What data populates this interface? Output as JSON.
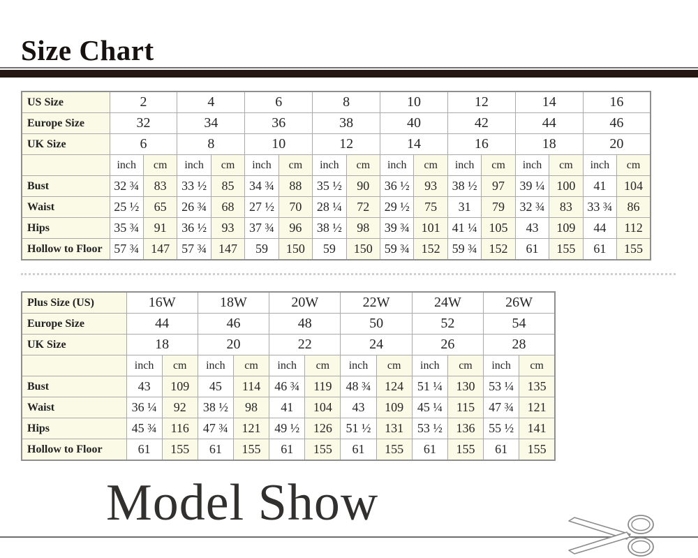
{
  "titles": {
    "size_chart": "Size Chart",
    "model_show": "Model Show"
  },
  "colors": {
    "cream_cell": "#FAFAE6",
    "table_border": "#A9A9A9",
    "title_bar": "#241712"
  },
  "icons": {
    "scissors": "✂"
  },
  "tables": {
    "standard": {
      "size_rows": [
        {
          "label": "US Size",
          "values": [
            "2",
            "4",
            "6",
            "8",
            "10",
            "12",
            "14",
            "16"
          ]
        },
        {
          "label": "Europe Size",
          "values": [
            "32",
            "34",
            "36",
            "38",
            "40",
            "42",
            "44",
            "46"
          ]
        },
        {
          "label": "UK Size",
          "values": [
            "6",
            "8",
            "10",
            "12",
            "14",
            "16",
            "18",
            "20"
          ]
        }
      ],
      "unit_corner": "",
      "unit_row": [
        "inch",
        "cm",
        "inch",
        "cm",
        "inch",
        "cm",
        "inch",
        "cm",
        "inch",
        "cm",
        "inch",
        "cm",
        "inch",
        "cm",
        "inch",
        "cm"
      ],
      "measure_rows": [
        {
          "label": "Bust",
          "values": [
            "32 ¾",
            "83",
            "33 ½",
            "85",
            "34 ¾",
            "88",
            "35 ½",
            "90",
            "36 ½",
            "93",
            "38 ½",
            "97",
            "39 ¼",
            "100",
            "41",
            "104"
          ]
        },
        {
          "label": "Waist",
          "values": [
            "25 ½",
            "65",
            "26 ¾",
            "68",
            "27 ½",
            "70",
            "28 ¼",
            "72",
            "29 ½",
            "75",
            "31",
            "79",
            "32 ¾",
            "83",
            "33 ¾",
            "86"
          ]
        },
        {
          "label": "Hips",
          "values": [
            "35 ¾",
            "91",
            "36 ½",
            "93",
            "37 ¾",
            "96",
            "38 ½",
            "98",
            "39 ¾",
            "101",
            "41 ¼",
            "105",
            "43",
            "109",
            "44",
            "112"
          ]
        },
        {
          "label": "Hollow to Floor",
          "values": [
            "57 ¾",
            "147",
            "57 ¾",
            "147",
            "59",
            "150",
            "59",
            "150",
            "59 ¾",
            "152",
            "59 ¾",
            "152",
            "61",
            "155",
            "61",
            "155"
          ]
        }
      ]
    },
    "plus": {
      "size_rows": [
        {
          "label": "Plus Size (US)",
          "values": [
            "16W",
            "18W",
            "20W",
            "22W",
            "24W",
            "26W"
          ]
        },
        {
          "label": "Europe Size",
          "values": [
            "44",
            "46",
            "48",
            "50",
            "52",
            "54"
          ]
        },
        {
          "label": "UK Size",
          "values": [
            "18",
            "20",
            "22",
            "24",
            "26",
            "28"
          ]
        }
      ],
      "unit_corner": "",
      "unit_row": [
        "inch",
        "cm",
        "inch",
        "cm",
        "inch",
        "cm",
        "inch",
        "cm",
        "inch",
        "cm",
        "inch",
        "cm"
      ],
      "measure_rows": [
        {
          "label": "Bust",
          "values": [
            "43",
            "109",
            "45",
            "114",
            "46 ¾",
            "119",
            "48 ¾",
            "124",
            "51 ¼",
            "130",
            "53 ¼",
            "135"
          ]
        },
        {
          "label": "Waist",
          "values": [
            "36 ¼",
            "92",
            "38 ½",
            "98",
            "41",
            "104",
            "43",
            "109",
            "45 ¼",
            "115",
            "47 ¾",
            "121"
          ]
        },
        {
          "label": "Hips",
          "values": [
            "45 ¾",
            "116",
            "47 ¾",
            "121",
            "49 ½",
            "126",
            "51 ½",
            "131",
            "53 ½",
            "136",
            "55 ½",
            "141"
          ]
        },
        {
          "label": "Hollow to Floor",
          "values": [
            "61",
            "155",
            "61",
            "155",
            "61",
            "155",
            "61",
            "155",
            "61",
            "155",
            "61",
            "155"
          ]
        }
      ]
    }
  }
}
